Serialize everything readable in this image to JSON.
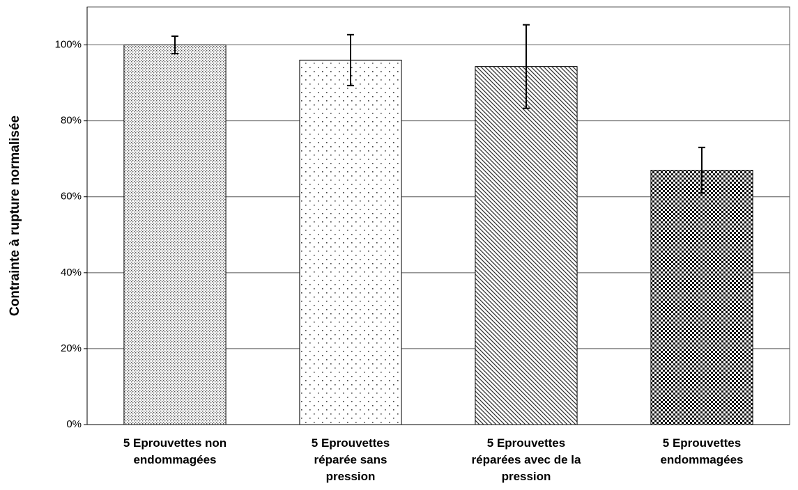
{
  "chart_data": {
    "type": "bar",
    "ylabel": "Contrainte à rupture normalisée",
    "categories": [
      [
        "5 Eprouvettes non",
        "endommagées"
      ],
      [
        "5 Eprouvettes",
        "réparée sans",
        "pression"
      ],
      [
        "5 Eprouvettes",
        "réparées avec de la",
        "pression"
      ],
      [
        "5 Eprouvettes",
        "endommagées"
      ]
    ],
    "values": [
      100,
      96,
      94.3,
      67
    ],
    "errors": [
      2.3,
      6.7,
      11,
      6
    ],
    "patterns": [
      "dots-fine",
      "dots-sparse",
      "diagonal",
      "dots-dense"
    ],
    "ylim": [
      0,
      110
    ],
    "yticks": [
      {
        "value": 0,
        "label": "0%"
      },
      {
        "value": 20,
        "label": "20%"
      },
      {
        "value": 40,
        "label": "40%"
      },
      {
        "value": 60,
        "label": "60%"
      },
      {
        "value": 80,
        "label": "80%"
      },
      {
        "value": 100,
        "label": "100%"
      }
    ],
    "grid": true
  }
}
